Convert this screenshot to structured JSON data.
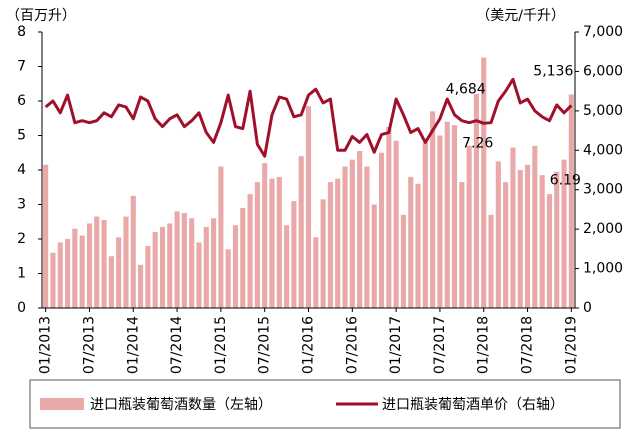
{
  "chart_data": {
    "type": "bar_line",
    "y_label": "（百万升）",
    "y2_label": "（美元/千升）",
    "categories": [
      "01/2013",
      null,
      null,
      null,
      null,
      null,
      "07/2013",
      null,
      null,
      null,
      null,
      null,
      "01/2014",
      null,
      null,
      null,
      null,
      null,
      "07/2014",
      null,
      null,
      null,
      null,
      null,
      "01/2015",
      null,
      null,
      null,
      null,
      null,
      "07/2015",
      null,
      null,
      null,
      null,
      null,
      "01/2016",
      null,
      null,
      null,
      null,
      null,
      "07/2016",
      null,
      null,
      null,
      null,
      null,
      "01/2017",
      null,
      null,
      null,
      null,
      null,
      "07/2017",
      null,
      null,
      null,
      null,
      null,
      "01/2018",
      null,
      null,
      null,
      null,
      null,
      "07/2018",
      null,
      null,
      null,
      null,
      null,
      "01/2019"
    ],
    "series": [
      {
        "name": "进口瓶装葡萄酒数量（左轴）",
        "type": "bar",
        "color": "#e8a9a8",
        "axis": "y",
        "values": [
          4.15,
          1.6,
          1.9,
          2.0,
          2.3,
          2.1,
          2.45,
          2.65,
          2.55,
          1.5,
          2.05,
          2.65,
          3.25,
          1.25,
          1.8,
          2.2,
          2.35,
          2.45,
          2.8,
          2.75,
          2.6,
          1.9,
          2.35,
          2.6,
          4.1,
          1.7,
          2.4,
          2.9,
          3.3,
          3.65,
          4.2,
          3.75,
          3.8,
          2.4,
          3.1,
          4.4,
          5.85,
          2.05,
          3.15,
          3.65,
          3.75,
          4.1,
          4.3,
          4.55,
          4.1,
          3.0,
          4.5,
          5.25,
          4.85,
          2.7,
          3.8,
          3.6,
          4.8,
          5.7,
          5.0,
          5.4,
          5.3,
          3.65,
          4.7,
          6.2,
          7.26,
          2.7,
          4.25,
          3.65,
          4.65,
          4.0,
          4.15,
          4.7,
          3.85,
          3.3,
          3.95,
          4.3,
          6.19
        ],
        "value_labels": [
          null,
          null,
          null,
          null,
          null,
          null,
          null,
          null,
          null,
          null,
          null,
          null,
          null,
          null,
          null,
          null,
          null,
          null,
          null,
          null,
          null,
          null,
          null,
          null,
          null,
          null,
          null,
          null,
          null,
          null,
          null,
          null,
          null,
          null,
          null,
          null,
          null,
          null,
          null,
          null,
          null,
          null,
          null,
          null,
          null,
          null,
          null,
          null,
          null,
          null,
          null,
          null,
          null,
          null,
          null,
          null,
          null,
          null,
          null,
          null,
          "7.26",
          null,
          null,
          null,
          null,
          null,
          null,
          null,
          null,
          null,
          null,
          null,
          "6.19"
        ]
      },
      {
        "name": "进口瓶装葡萄酒单价（右轴）",
        "type": "line",
        "color": "#a0102a",
        "axis": "y2",
        "values": [
          5100,
          5250,
          4950,
          5400,
          4700,
          4750,
          4700,
          4750,
          4950,
          4850,
          5150,
          5100,
          4800,
          5350,
          5250,
          4800,
          4600,
          4800,
          4900,
          4600,
          4750,
          4950,
          4450,
          4200,
          4700,
          5400,
          4600,
          4550,
          5500,
          4150,
          3850,
          4900,
          5350,
          5300,
          4850,
          4900,
          5400,
          5550,
          5200,
          5300,
          4000,
          4000,
          4350,
          4200,
          4400,
          3950,
          4400,
          4450,
          5300,
          4900,
          4450,
          4550,
          4200,
          4500,
          4800,
          5300,
          4900,
          4750,
          4700,
          4750,
          4684,
          4700,
          5250,
          5500,
          5800,
          5200,
          5300,
          5000,
          4850,
          4750,
          5150,
          4950,
          5136
        ],
        "value_labels": [
          null,
          null,
          null,
          null,
          null,
          null,
          null,
          null,
          null,
          null,
          null,
          null,
          null,
          null,
          null,
          null,
          null,
          null,
          null,
          null,
          null,
          null,
          null,
          null,
          null,
          null,
          null,
          null,
          null,
          null,
          null,
          null,
          null,
          null,
          null,
          null,
          null,
          null,
          null,
          null,
          null,
          null,
          null,
          null,
          null,
          null,
          null,
          null,
          null,
          null,
          null,
          null,
          null,
          null,
          null,
          null,
          null,
          null,
          null,
          null,
          "4,684",
          null,
          null,
          null,
          null,
          null,
          null,
          null,
          null,
          null,
          null,
          null,
          "5,136"
        ]
      }
    ],
    "ylim": [
      0,
      8
    ],
    "yticks": [
      0,
      1,
      2,
      3,
      4,
      5,
      6,
      7,
      8
    ],
    "y2lim": [
      0,
      7000
    ],
    "y2ticks": [
      0,
      {
        "value": 1000,
        "label": "1,000"
      },
      {
        "value": 2000,
        "label": "2,000"
      },
      {
        "value": 3000,
        "label": "3,000"
      },
      {
        "value": 4000,
        "label": "4,000"
      },
      {
        "value": 5000,
        "label": "5,000"
      },
      {
        "value": 6000,
        "label": "6,000"
      },
      {
        "value": 7000,
        "label": "7,000"
      }
    ]
  }
}
